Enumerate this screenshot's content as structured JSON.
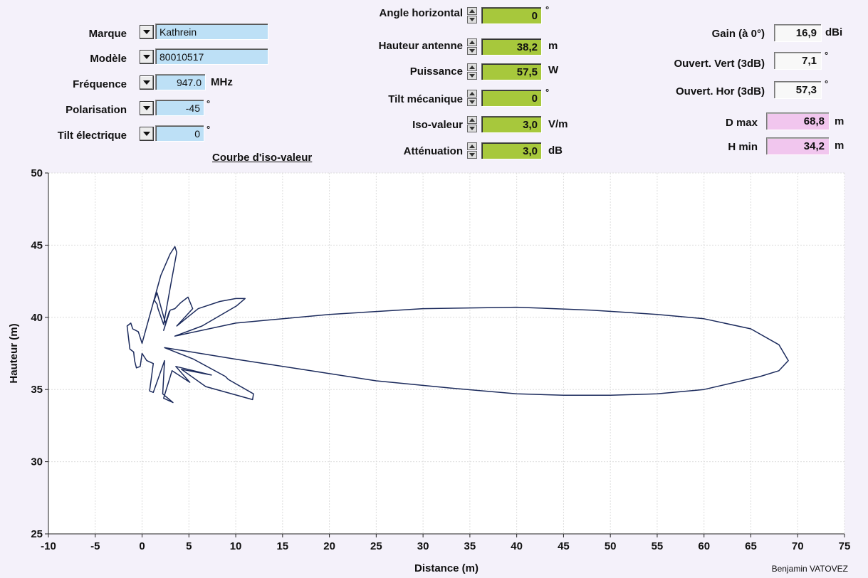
{
  "left_panel": {
    "marque": {
      "label": "Marque",
      "value": "Kathrein"
    },
    "modele": {
      "label": "Modèle",
      "value": "80010517"
    },
    "frequence": {
      "label": "Fréquence",
      "value": "947.0",
      "unit": "MHz"
    },
    "polarisation": {
      "label": "Polarisation",
      "value": "-45",
      "unit": "°"
    },
    "tilt_electrique": {
      "label": "Tilt électrique",
      "value": "0",
      "unit": "°"
    },
    "curve_title": "Courbe d'iso-valeur"
  },
  "center_panel": {
    "angle_horizontal": {
      "label": "Angle horizontal",
      "value": "0",
      "unit": "°"
    },
    "hauteur_antenne": {
      "label": "Hauteur antenne",
      "value": "38,2",
      "unit": "m"
    },
    "puissance": {
      "label": "Puissance",
      "value": "57,5",
      "unit": "W"
    },
    "tilt_mecanique": {
      "label": "Tilt mécanique",
      "value": "0",
      "unit": "°"
    },
    "iso_valeur": {
      "label": "Iso-valeur",
      "value": "3,0",
      "unit": "V/m"
    },
    "attenuation": {
      "label": "Atténuation",
      "value": "3,0",
      "unit": "dB"
    }
  },
  "right_panel": {
    "gain": {
      "label": "Gain (à 0°)",
      "value": "16,9",
      "unit": "dBi"
    },
    "ouvert_vert": {
      "label": "Ouvert. Vert (3dB)",
      "value": "7,1",
      "unit": "°"
    },
    "ouvert_hor": {
      "label": "Ouvert. Hor (3dB)",
      "value": "57,3",
      "unit": "°"
    },
    "d_max": {
      "label": "D max",
      "value": "68,8",
      "unit": "m"
    },
    "h_min": {
      "label": "H min",
      "value": "34,2",
      "unit": "m"
    }
  },
  "colors": {
    "input_blue": "#bde0f6",
    "input_green": "#a7c83c",
    "output_pink": "#f1c6ee",
    "curve": "#1b2a5c"
  },
  "author": "Benjamin VATOVEZ",
  "chart_data": {
    "type": "line",
    "xlabel": "Distance (m)",
    "ylabel": "Hauteur (m)",
    "xlim": [
      -10,
      75
    ],
    "ylim": [
      25,
      50
    ],
    "xticks": [
      -10,
      -5,
      0,
      5,
      10,
      15,
      20,
      25,
      30,
      35,
      40,
      45,
      50,
      55,
      60,
      65,
      70,
      75
    ],
    "yticks": [
      25,
      30,
      35,
      40,
      45,
      50
    ],
    "grid": true,
    "series": [
      {
        "closed": true,
        "x": [
          0.0,
          2.0,
          3.0,
          3.5,
          3.7,
          3.1,
          2.3,
          1.7,
          1.6,
          1.3,
          1.6,
          2.1,
          2.5,
          2.9,
          2.3,
          3.0,
          3.5,
          4.1,
          4.9,
          5.4,
          3.7,
          6.0,
          8.3,
          10.0,
          11.0,
          10.1,
          6.4,
          3.5,
          10.0,
          20.0,
          30.0,
          40.0,
          48.0,
          55.0,
          60.0,
          65.0,
          68.0,
          69.0,
          68.0,
          66.0,
          60.0,
          55.0,
          50.0,
          45.0,
          40.0,
          33.0,
          25.0,
          18.0,
          10.0,
          5.3,
          2.4,
          5.5,
          8.9,
          9.2,
          11.9,
          11.8,
          6.8,
          4.2,
          7.4,
          3.6,
          5.1,
          3.2,
          2.3,
          3.3,
          2.2,
          2.4,
          1.2,
          0.8,
          1.2,
          0.5,
          0.0,
          -0.2,
          -0.6,
          -0.8,
          -0.9,
          -1.3,
          -1.6,
          -1.2,
          -1.0,
          -0.4,
          0.0
        ],
        "y": [
          38.2,
          42.9,
          44.4,
          44.9,
          44.5,
          42.4,
          39.5,
          40.6,
          40.9,
          41.2,
          41.7,
          40.5,
          39.6,
          40.4,
          39.1,
          40.5,
          40.6,
          41.0,
          41.4,
          40.6,
          39.4,
          40.6,
          41.1,
          41.3,
          41.3,
          40.8,
          39.4,
          38.7,
          39.6,
          40.2,
          40.6,
          40.7,
          40.5,
          40.2,
          39.9,
          39.2,
          38.1,
          37.0,
          36.3,
          35.9,
          35.0,
          34.7,
          34.6,
          34.6,
          34.7,
          35.1,
          35.6,
          36.3,
          37.1,
          37.6,
          37.9,
          37.1,
          35.9,
          35.7,
          34.7,
          34.3,
          35.2,
          36.4,
          36.0,
          36.6,
          35.5,
          36.3,
          34.4,
          34.1,
          34.7,
          37.0,
          34.8,
          34.9,
          36.8,
          37.0,
          37.5,
          36.6,
          36.5,
          37.0,
          37.6,
          37.8,
          39.4,
          39.6,
          39.2,
          39.0,
          38.2
        ]
      }
    ]
  }
}
